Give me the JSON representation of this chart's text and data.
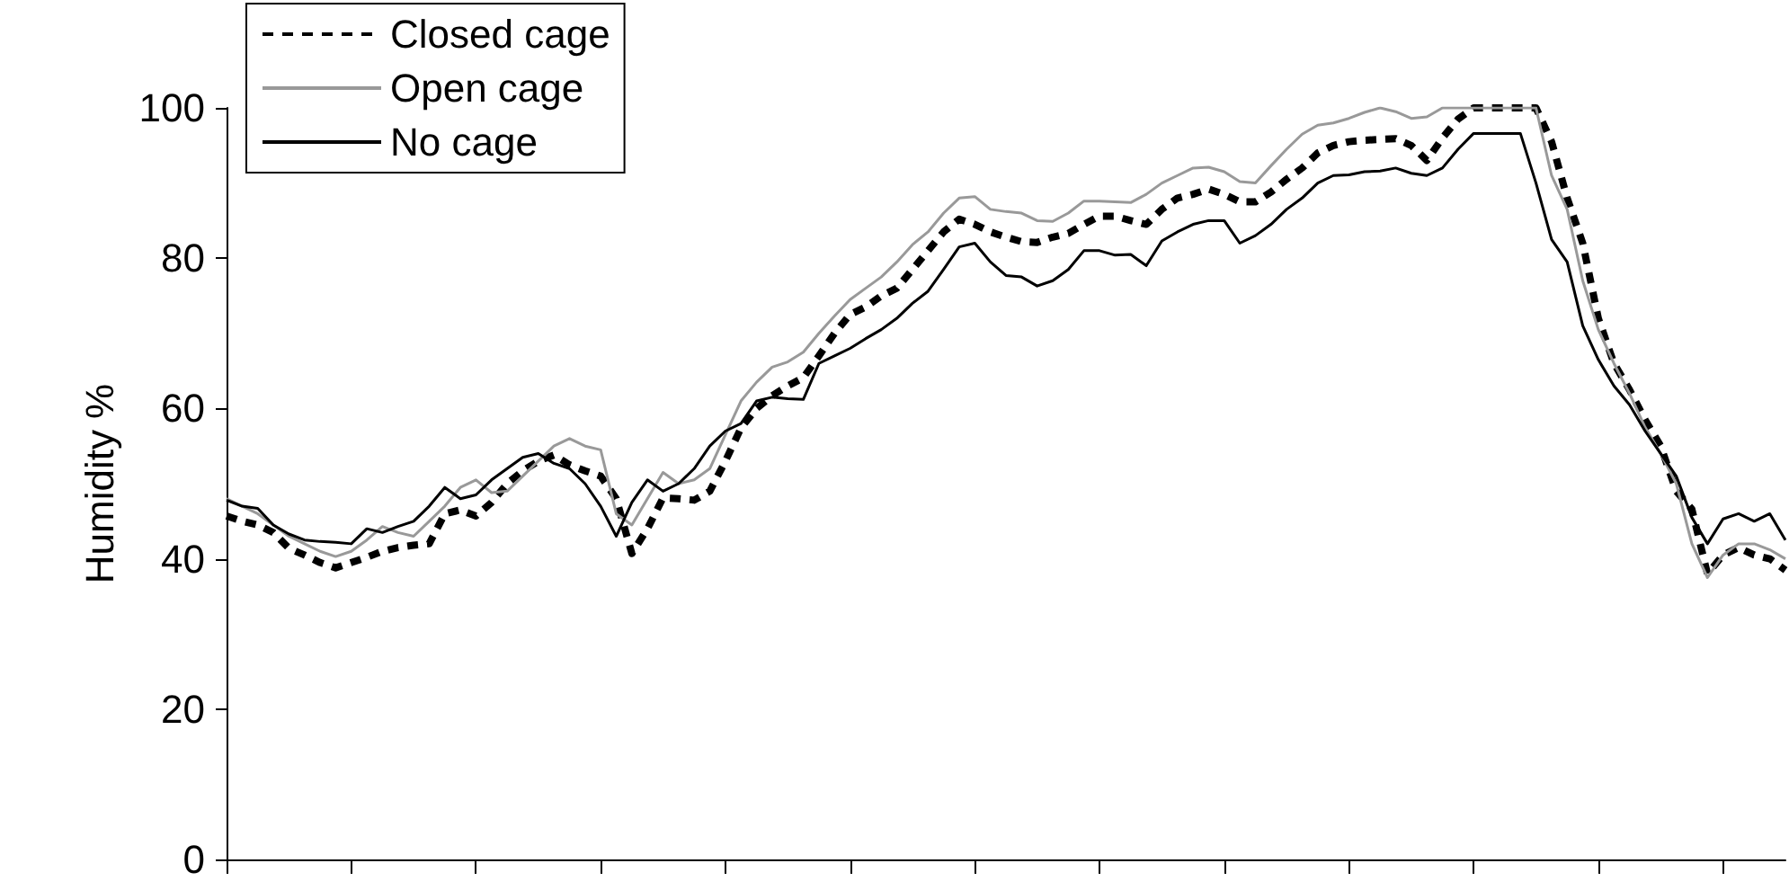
{
  "chart_data": {
    "type": "line",
    "ylabel": "Humidity %",
    "categories": [
      null,
      null,
      null,
      null,
      null,
      null,
      null,
      null,
      null,
      null,
      null,
      null,
      null,
      null,
      null,
      null,
      null,
      null,
      null,
      null,
      null,
      null,
      null,
      null,
      null,
      null,
      null,
      null,
      null,
      null,
      null,
      null,
      null,
      null,
      null,
      null,
      null,
      null,
      null,
      null,
      null,
      null,
      null,
      null,
      null,
      null,
      null,
      null,
      null,
      null,
      null,
      null,
      null,
      null,
      null,
      null,
      null,
      null,
      null,
      null,
      null,
      null,
      null,
      null,
      null,
      null,
      null,
      null,
      null,
      null,
      null,
      null,
      null,
      null,
      null,
      null,
      null,
      null,
      null,
      null,
      null,
      null,
      null,
      null,
      null,
      null,
      null,
      null,
      null,
      null,
      null,
      null,
      null,
      null,
      null,
      null,
      null,
      null,
      null,
      null,
      null
    ],
    "ylim": [
      0,
      100
    ],
    "yticks": [
      0,
      20,
      40,
      60,
      80,
      100
    ],
    "grid": false,
    "legend": "top left",
    "tick_labels": "y",
    "series": [
      {
        "name": "Closed cage",
        "color": "#000000",
        "line_style": "dashed",
        "values": [
          45.7,
          45,
          44.5,
          43.5,
          41.4,
          40.5,
          39.5,
          38.8,
          39.5,
          40.2,
          41,
          41.5,
          41.8,
          42,
          46,
          46.5,
          45.7,
          47.5,
          50,
          51.7,
          53,
          53.8,
          52.5,
          51.7,
          51,
          48,
          40.7,
          44,
          48.1,
          48,
          47.8,
          49,
          53,
          57.4,
          60,
          61.7,
          63,
          64.1,
          67,
          70,
          72.5,
          73.5,
          75,
          76,
          78.5,
          81,
          83.5,
          85.2,
          84.5,
          83.5,
          82.8,
          82.2,
          82.1,
          82.8,
          83.3,
          84.5,
          85.6,
          85.6,
          85,
          84.5,
          86.5,
          88,
          88.5,
          89.2,
          88.5,
          87.5,
          87.5,
          88.8,
          90.5,
          92,
          94,
          95,
          95.5,
          95.7,
          95.8,
          95.9,
          95,
          93,
          96,
          98.5,
          100,
          100,
          100,
          100,
          100,
          95.5,
          88,
          82,
          72,
          66,
          62.5,
          58.5,
          55,
          49,
          46.6,
          38,
          40.5,
          41.5,
          40.5,
          40,
          38.5
        ]
      },
      {
        "name": "Open cage",
        "color": "#999999",
        "line_style": "solid",
        "values": [
          48,
          47,
          46,
          44.5,
          43,
          42,
          41,
          40.3,
          41,
          42.5,
          44.3,
          43.5,
          43,
          45,
          47,
          49.5,
          50.5,
          48.8,
          49,
          51,
          53,
          55,
          56,
          55,
          54.5,
          46,
          44.5,
          48,
          51.5,
          50,
          50.5,
          52,
          56.5,
          61,
          63.5,
          65.5,
          66.2,
          67.5,
          70,
          72.3,
          74.5,
          76,
          77.5,
          79.5,
          81.8,
          83.5,
          86,
          88,
          88.2,
          86.5,
          86.2,
          86,
          85,
          84.9,
          86,
          87.6,
          87.6,
          87.5,
          87.4,
          88.5,
          90,
          91,
          92,
          92.1,
          91.5,
          90.2,
          90,
          92.3,
          94.5,
          96.5,
          97.7,
          98,
          98.6,
          99.4,
          100,
          99.5,
          98.6,
          98.8,
          100,
          100,
          100,
          100,
          100,
          100,
          100,
          91,
          86.5,
          77,
          70.5,
          66,
          62,
          57.5,
          54,
          50,
          42,
          37.5,
          40.5,
          42,
          42,
          41.2,
          40
        ]
      },
      {
        "name": "No cage",
        "color": "#000000",
        "line_style": "solid",
        "values": [
          47.8,
          47,
          46.7,
          44.5,
          43.3,
          42.5,
          42.3,
          42.2,
          42,
          44,
          43.5,
          44.3,
          45,
          47,
          49.5,
          48,
          48.5,
          50.5,
          52,
          53.5,
          54,
          52.7,
          52,
          50,
          47,
          43,
          47.5,
          50.5,
          49,
          50,
          52,
          55,
          57,
          58,
          61,
          61.5,
          61.3,
          61.2,
          66,
          67,
          68,
          69.3,
          70.5,
          72,
          74,
          75.6,
          78.5,
          81.5,
          82,
          79.5,
          77.7,
          77.5,
          76.3,
          77,
          78.5,
          81,
          81,
          80.4,
          80.5,
          79,
          82.3,
          83.5,
          84.5,
          85,
          85,
          82,
          83,
          84.5,
          86.5,
          88,
          90,
          91,
          91.1,
          91.5,
          91.6,
          92,
          91.3,
          91,
          92,
          94.5,
          96.6,
          96.6,
          96.6,
          96.6,
          90,
          82.5,
          79.5,
          71,
          66.5,
          63,
          60.5,
          57,
          54,
          51,
          45.5,
          42,
          45.3,
          46,
          45,
          46,
          42.5
        ]
      }
    ]
  }
}
